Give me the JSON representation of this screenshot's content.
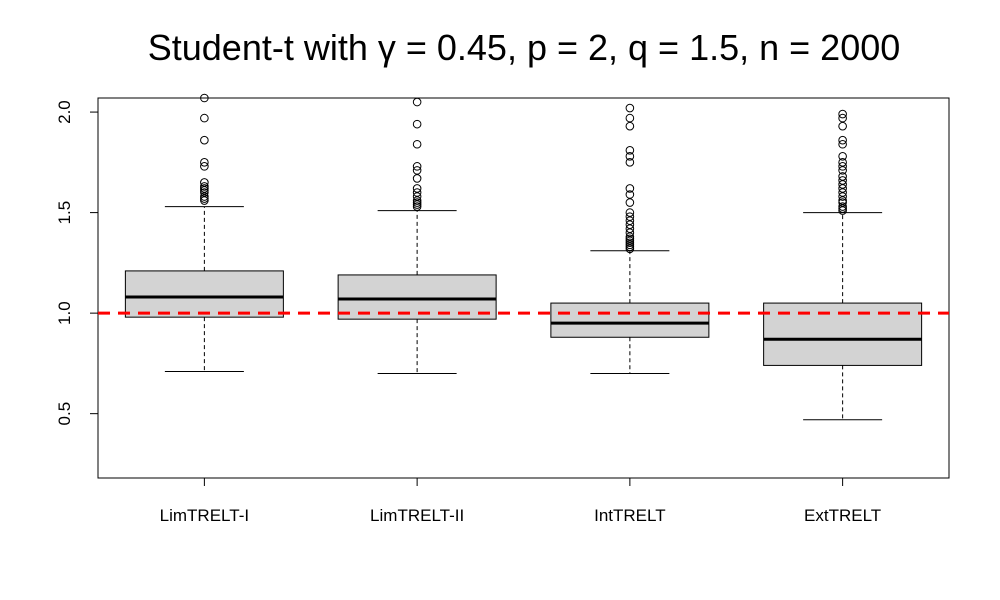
{
  "chart_data": {
    "type": "boxplot",
    "title": "Student-t with γ = 0.45, p = 2, q = 1.5, n = 2000",
    "xlabel": "",
    "ylabel": "",
    "ylim": [
      0.18,
      2.07
    ],
    "yticks": [
      0.5,
      1.0,
      1.5,
      2.0
    ],
    "ytick_labels": [
      "0.5",
      "1.0",
      "1.5",
      "2.0"
    ],
    "reference_line": {
      "y": 1.0,
      "color": "#ff0000",
      "style": "dashed"
    },
    "box_fill": "#d3d3d3",
    "categories": [
      "LimTRELT-I",
      "LimTRELT-II",
      "IntTRELT",
      "ExtTRELT"
    ],
    "boxes": [
      {
        "name": "LimTRELT-I",
        "whisker_low": 0.71,
        "q1": 0.98,
        "median": 1.08,
        "q3": 1.21,
        "whisker_high": 1.53,
        "outliers": [
          2.07,
          1.97,
          1.86,
          1.75,
          1.73,
          1.65,
          1.63,
          1.62,
          1.61,
          1.6,
          1.58,
          1.57,
          1.56
        ]
      },
      {
        "name": "LimTRELT-II",
        "whisker_low": 0.7,
        "q1": 0.97,
        "median": 1.07,
        "q3": 1.19,
        "whisker_high": 1.51,
        "outliers": [
          2.05,
          1.94,
          1.84,
          1.73,
          1.71,
          1.67,
          1.62,
          1.6,
          1.58,
          1.56,
          1.55,
          1.54,
          1.53
        ]
      },
      {
        "name": "IntTRELT",
        "whisker_low": 0.7,
        "q1": 0.88,
        "median": 0.95,
        "q3": 1.05,
        "whisker_high": 1.31,
        "outliers": [
          2.02,
          1.97,
          1.93,
          1.81,
          1.78,
          1.75,
          1.62,
          1.59,
          1.55,
          1.5,
          1.48,
          1.46,
          1.44,
          1.42,
          1.4,
          1.38,
          1.37,
          1.36,
          1.35,
          1.34,
          1.33,
          1.32
        ]
      },
      {
        "name": "ExtTRELT",
        "whisker_low": 0.47,
        "q1": 0.74,
        "median": 0.87,
        "q3": 1.05,
        "whisker_high": 1.5,
        "outliers": [
          1.99,
          1.97,
          1.93,
          1.86,
          1.84,
          1.78,
          1.75,
          1.73,
          1.71,
          1.68,
          1.66,
          1.64,
          1.62,
          1.6,
          1.58,
          1.56,
          1.55,
          1.53,
          1.52,
          1.51
        ]
      }
    ]
  }
}
